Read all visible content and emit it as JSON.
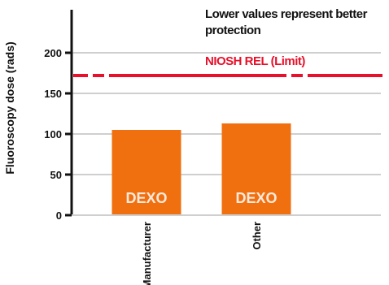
{
  "chart_data": {
    "type": "bar",
    "title": "",
    "annotation": "Lower values represent better protection",
    "ylabel": "Fluoroscopy dose (rads)",
    "xlabel": "",
    "ylim": [
      0,
      200
    ],
    "yticks": [
      "0",
      "50",
      "100",
      "150",
      "200"
    ],
    "categories": [
      "Manufacturer",
      "Other"
    ],
    "series": [
      {
        "values": [
          105,
          113
        ],
        "bar_labels": [
          "DEXO",
          "DEXO"
        ],
        "color": "#f07010"
      }
    ],
    "reference_line": {
      "value": 172,
      "label": "NIOSH REL (Limit)",
      "color": "#e8102a",
      "style": "dashed"
    },
    "grid": true,
    "legend": "none"
  }
}
